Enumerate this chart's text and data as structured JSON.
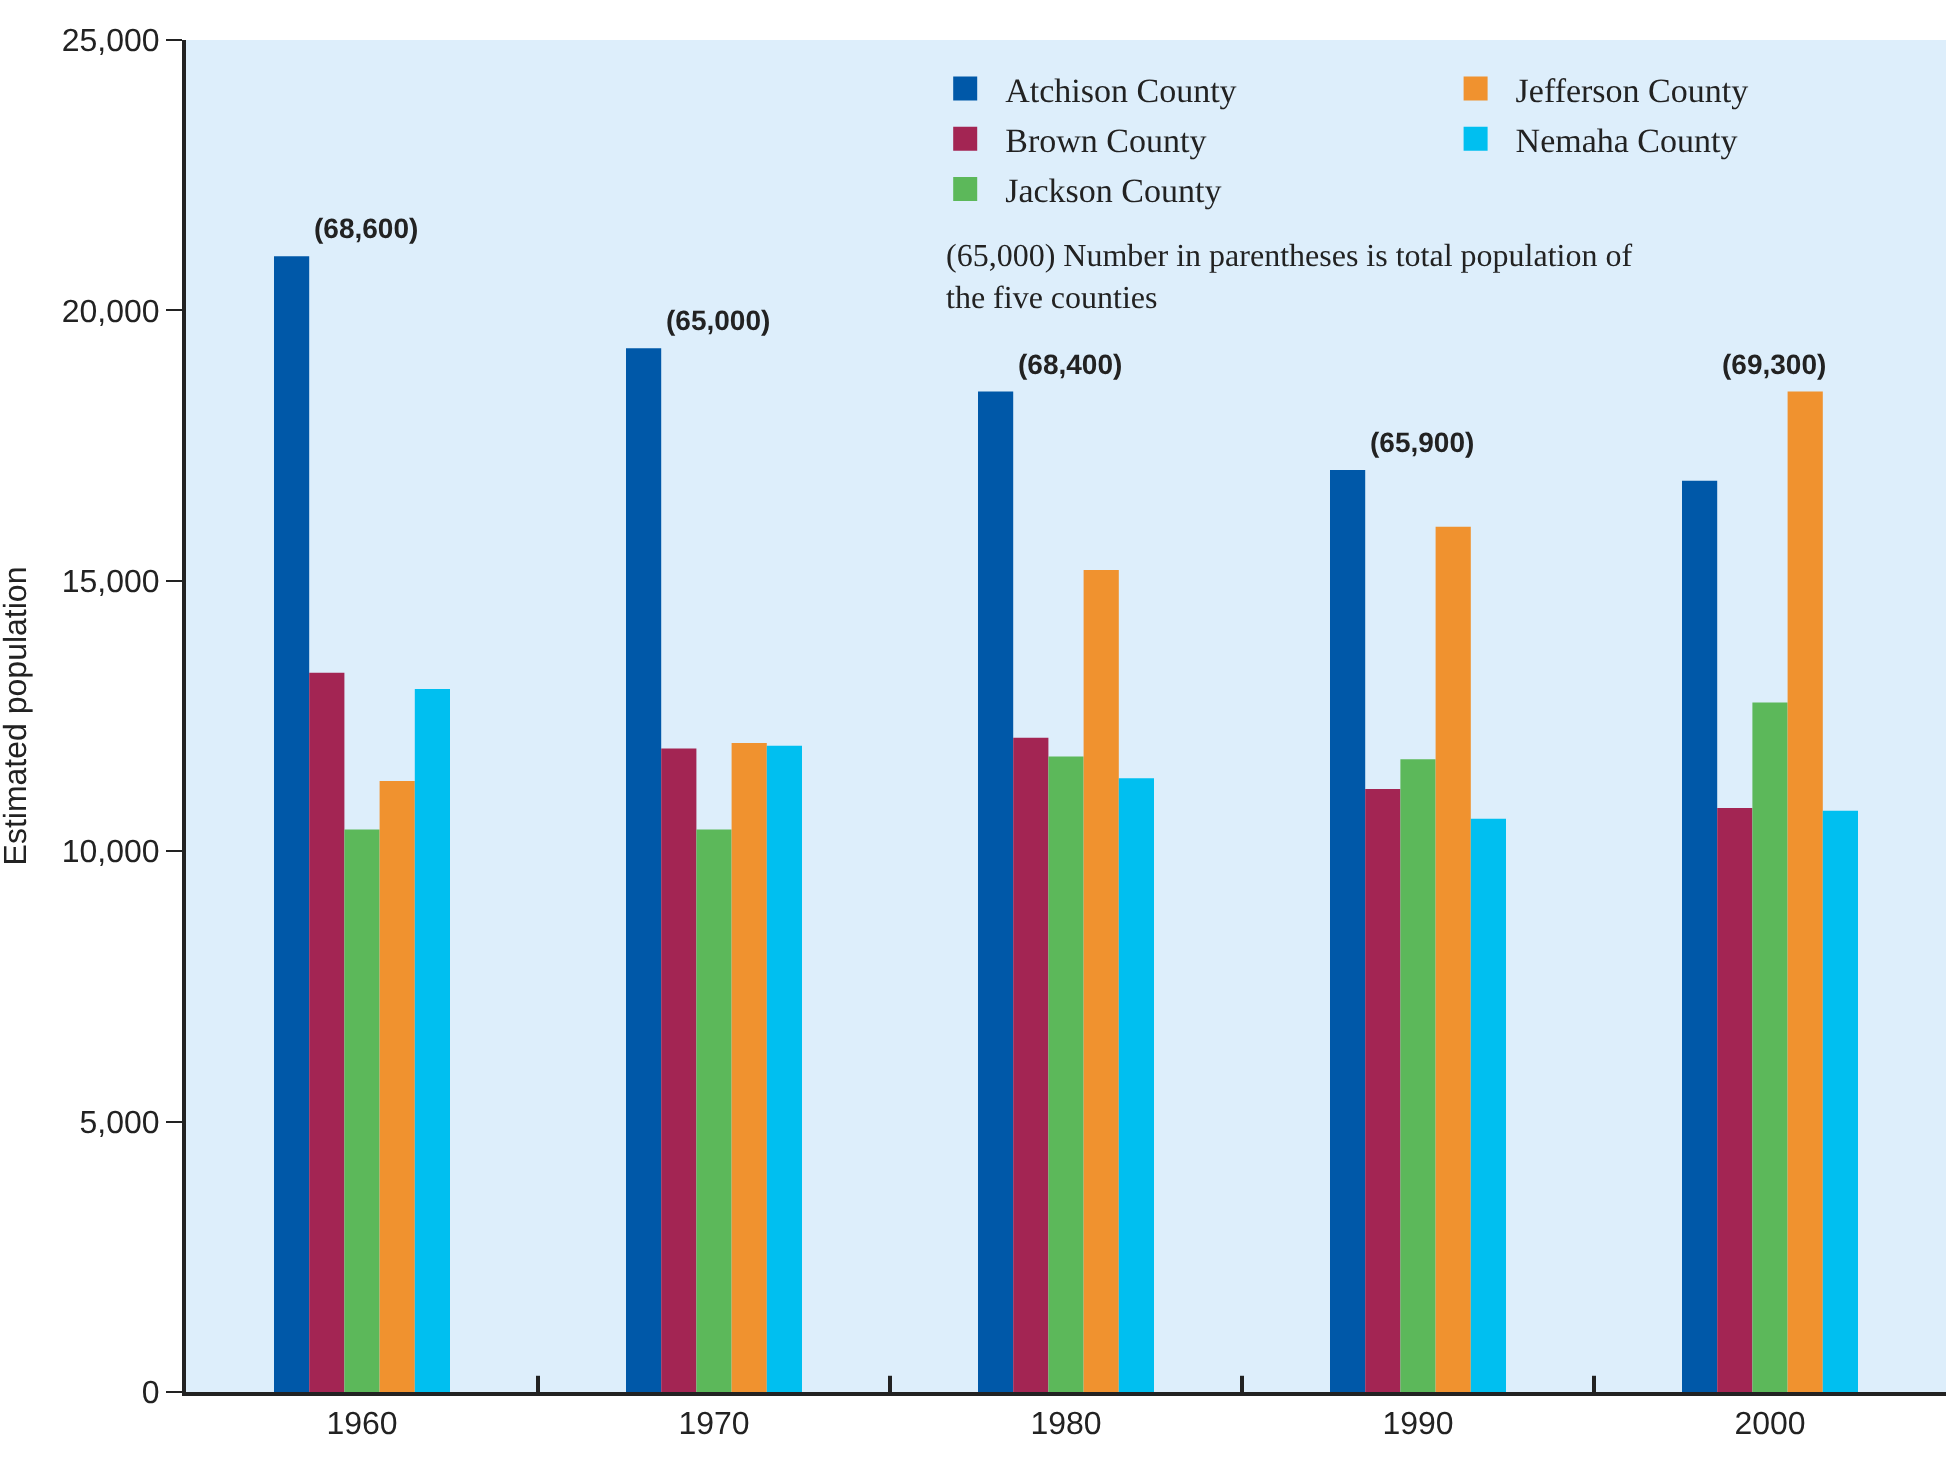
{
  "chart_data": {
    "type": "bar",
    "ylabel": "Estimated population",
    "categories": [
      "1960",
      "1970",
      "1980",
      "1990",
      "2000"
    ],
    "series": [
      {
        "name": "Atchison County",
        "color": "#0058a8",
        "values": [
          21000,
          19300,
          18500,
          17050,
          16850
        ]
      },
      {
        "name": "Brown County",
        "color": "#a32553",
        "values": [
          13300,
          11900,
          12100,
          11150,
          10800
        ]
      },
      {
        "name": "Jackson County",
        "color": "#5cb85a",
        "values": [
          10400,
          10400,
          11750,
          11700,
          12750
        ]
      },
      {
        "name": "Jefferson County",
        "color": "#f0922f",
        "values": [
          11300,
          12000,
          15200,
          16000,
          18500
        ]
      },
      {
        "name": "Nemaha County",
        "color": "#00bff0",
        "values": [
          13000,
          11950,
          11350,
          10600,
          10750
        ]
      }
    ],
    "ylim": [
      0,
      25000
    ],
    "yticks": [
      {
        "value": 0,
        "label": "0"
      },
      {
        "value": 5000,
        "label": "5,000"
      },
      {
        "value": 10000,
        "label": "10,000"
      },
      {
        "value": 15000,
        "label": "15,000"
      },
      {
        "value": 20000,
        "label": "20,000"
      },
      {
        "value": 25000,
        "label": "25,000"
      }
    ],
    "grid": false,
    "legend": "top right",
    "annotations": [
      "(68,600)",
      "(65,000)",
      "(68,400)",
      "(65,900)",
      "(69,300)",
      "(65,000) Number in parentheses is total population of the five counties"
    ]
  }
}
